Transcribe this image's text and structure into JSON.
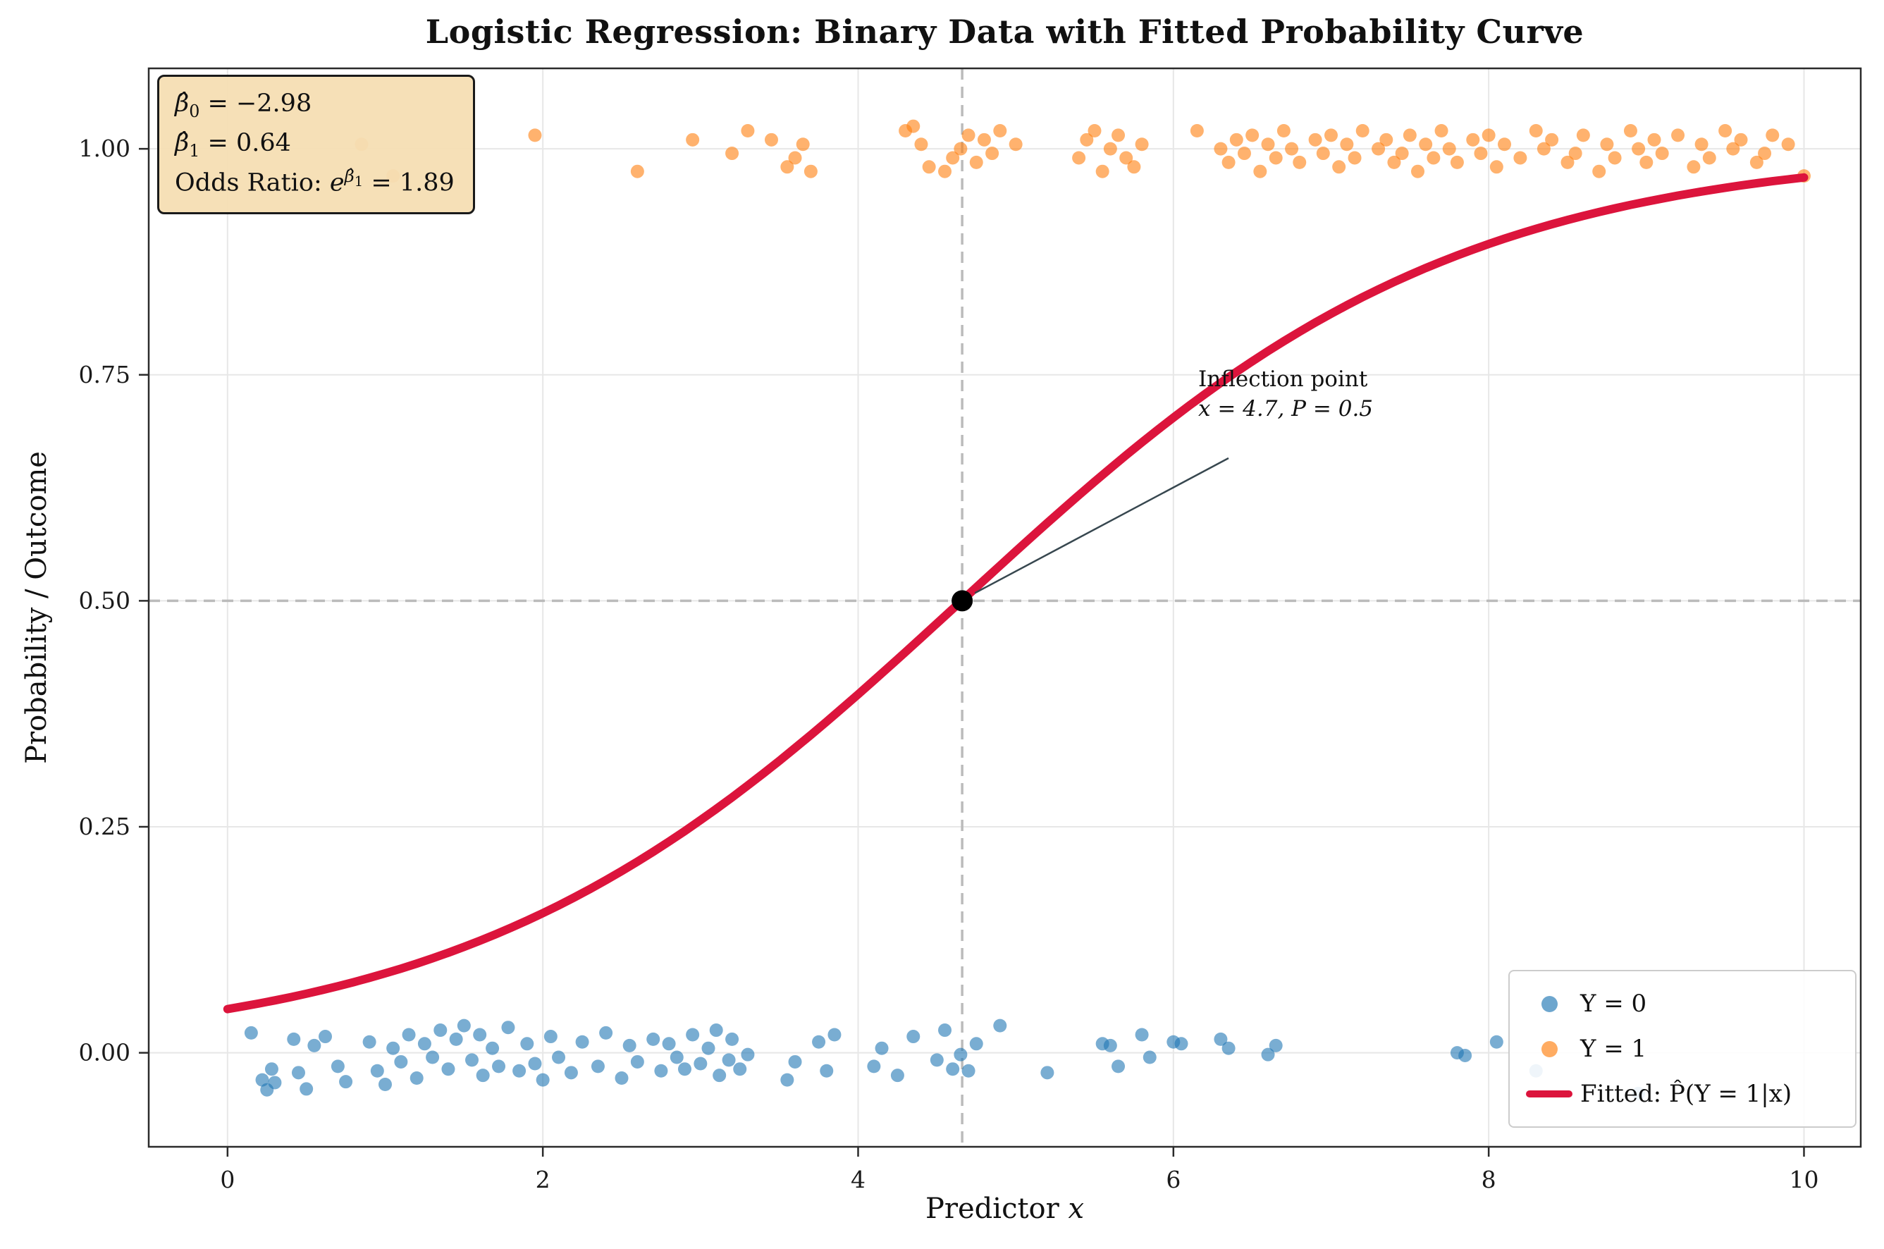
{
  "title": "Logistic Regression: Binary Data with Fitted Probability Curve",
  "labels": {
    "xlabel_text": "Predictor ",
    "xlabel_var": "x",
    "ylabel": "Probability / Outcome"
  },
  "stats_box": {
    "line1": {
      "base": "β̂",
      "sub": "0",
      "value": " = −2.98"
    },
    "line2": {
      "base": "β̂",
      "sub": "1",
      "value": " = 0.64"
    },
    "line3": {
      "prefix": "Odds Ratio: ",
      "base": "e",
      "sup_base": "β̂",
      "sup_sub": "1",
      "value": " = 1.89"
    }
  },
  "annotation": {
    "line1": "Inflection point",
    "line2": "x = 4.7, P = 0.5"
  },
  "legend": {
    "position": "lower right",
    "items": [
      {
        "label": "Y = 0",
        "marker": "dot"
      },
      {
        "label": "Y = 1",
        "marker": "dot"
      },
      {
        "label": "Fitted: P̂(Y = 1|x)",
        "marker": "line"
      }
    ]
  },
  "chart_data": {
    "type": "scatter",
    "title": "Logistic Regression: Binary Data with Fitted Probability Curve",
    "xlabel": "Predictor x",
    "ylabel": "Probability / Outcome",
    "xlim": [
      -0.5,
      10.36
    ],
    "ylim": [
      -0.104,
      1.089
    ],
    "x_ticks": [
      0,
      2,
      4,
      6,
      8,
      10
    ],
    "x_tick_labels": [
      "0",
      "2",
      "4",
      "6",
      "8",
      "10"
    ],
    "y_ticks": [
      0,
      0.25,
      0.5,
      0.75,
      1.0
    ],
    "y_tick_labels": [
      "0.00",
      "0.25",
      "0.50",
      "0.75",
      "1.00"
    ],
    "grid": true,
    "grid_color": "#e7e7e7",
    "series": [
      {
        "name": "Y = 0",
        "color": "#1f77b4",
        "opacity": 0.6,
        "points": [
          [
            0.15,
            0.022
          ],
          [
            0.22,
            -0.03
          ],
          [
            0.25,
            -0.041
          ],
          [
            0.28,
            -0.018
          ],
          [
            0.3,
            -0.033
          ],
          [
            0.42,
            0.015
          ],
          [
            0.45,
            -0.022
          ],
          [
            0.5,
            -0.04
          ],
          [
            0.55,
            0.008
          ],
          [
            0.62,
            0.018
          ],
          [
            0.7,
            -0.015
          ],
          [
            0.75,
            -0.032
          ],
          [
            0.9,
            0.012
          ],
          [
            0.95,
            -0.02
          ],
          [
            1.0,
            -0.035
          ],
          [
            1.05,
            0.005
          ],
          [
            1.1,
            -0.01
          ],
          [
            1.15,
            0.02
          ],
          [
            1.2,
            -0.028
          ],
          [
            1.25,
            0.01
          ],
          [
            1.3,
            -0.005
          ],
          [
            1.35,
            0.025
          ],
          [
            1.4,
            -0.018
          ],
          [
            1.45,
            0.015
          ],
          [
            1.5,
            0.03
          ],
          [
            1.55,
            -0.008
          ],
          [
            1.6,
            0.02
          ],
          [
            1.62,
            -0.025
          ],
          [
            1.68,
            0.005
          ],
          [
            1.72,
            -0.015
          ],
          [
            1.78,
            0.028
          ],
          [
            1.85,
            -0.02
          ],
          [
            1.9,
            0.01
          ],
          [
            1.95,
            -0.012
          ],
          [
            2.0,
            -0.03
          ],
          [
            2.05,
            0.018
          ],
          [
            2.1,
            -0.005
          ],
          [
            2.18,
            -0.022
          ],
          [
            2.25,
            0.012
          ],
          [
            2.35,
            -0.015
          ],
          [
            2.4,
            0.022
          ],
          [
            2.5,
            -0.028
          ],
          [
            2.55,
            0.008
          ],
          [
            2.6,
            -0.01
          ],
          [
            2.7,
            0.015
          ],
          [
            2.75,
            -0.02
          ],
          [
            2.8,
            0.01
          ],
          [
            2.85,
            -0.005
          ],
          [
            2.9,
            -0.018
          ],
          [
            2.95,
            0.02
          ],
          [
            3.0,
            -0.012
          ],
          [
            3.05,
            0.005
          ],
          [
            3.1,
            0.025
          ],
          [
            3.12,
            -0.025
          ],
          [
            3.18,
            -0.008
          ],
          [
            3.2,
            0.015
          ],
          [
            3.25,
            -0.018
          ],
          [
            3.3,
            -0.002
          ],
          [
            3.55,
            -0.03
          ],
          [
            3.6,
            -0.01
          ],
          [
            3.75,
            0.012
          ],
          [
            3.8,
            -0.02
          ],
          [
            3.85,
            0.02
          ],
          [
            4.1,
            -0.015
          ],
          [
            4.15,
            0.005
          ],
          [
            4.25,
            -0.025
          ],
          [
            4.35,
            0.018
          ],
          [
            4.5,
            -0.008
          ],
          [
            4.55,
            0.025
          ],
          [
            4.6,
            -0.018
          ],
          [
            4.65,
            -0.002
          ],
          [
            4.7,
            -0.02
          ],
          [
            4.75,
            0.01
          ],
          [
            4.9,
            0.03
          ],
          [
            5.2,
            -0.022
          ],
          [
            5.55,
            0.01
          ],
          [
            5.6,
            0.008
          ],
          [
            5.65,
            -0.015
          ],
          [
            5.8,
            0.02
          ],
          [
            5.85,
            -0.005
          ],
          [
            6.0,
            0.012
          ],
          [
            6.05,
            0.01
          ],
          [
            6.3,
            0.015
          ],
          [
            6.35,
            0.005
          ],
          [
            6.6,
            -0.002
          ],
          [
            6.65,
            0.008
          ],
          [
            7.8,
            0.0
          ],
          [
            7.85,
            -0.003
          ],
          [
            8.05,
            0.012
          ],
          [
            8.3,
            -0.02
          ],
          [
            8.95,
            -0.045
          ]
        ]
      },
      {
        "name": "Y = 1",
        "color": "#ff7f0e",
        "opacity": 0.6,
        "points": [
          [
            0.85,
            1.005
          ],
          [
            1.05,
            0.97
          ],
          [
            1.95,
            1.015
          ],
          [
            2.6,
            0.975
          ],
          [
            2.95,
            1.01
          ],
          [
            3.2,
            0.995
          ],
          [
            3.3,
            1.02
          ],
          [
            3.45,
            1.01
          ],
          [
            3.55,
            0.98
          ],
          [
            3.6,
            0.99
          ],
          [
            3.65,
            1.005
          ],
          [
            3.7,
            0.975
          ],
          [
            4.3,
            1.02
          ],
          [
            4.35,
            1.025
          ],
          [
            4.4,
            1.005
          ],
          [
            4.45,
            0.98
          ],
          [
            4.55,
            0.975
          ],
          [
            4.6,
            0.99
          ],
          [
            4.65,
            1.0
          ],
          [
            4.7,
            1.015
          ],
          [
            4.75,
            0.985
          ],
          [
            4.8,
            1.01
          ],
          [
            4.85,
            0.995
          ],
          [
            4.9,
            1.02
          ],
          [
            5.0,
            1.005
          ],
          [
            5.4,
            0.99
          ],
          [
            5.45,
            1.01
          ],
          [
            5.5,
            1.02
          ],
          [
            5.55,
            0.975
          ],
          [
            5.6,
            1.0
          ],
          [
            5.65,
            1.015
          ],
          [
            5.7,
            0.99
          ],
          [
            5.75,
            0.98
          ],
          [
            5.8,
            1.005
          ],
          [
            6.15,
            1.02
          ],
          [
            6.3,
            1.0
          ],
          [
            6.35,
            0.985
          ],
          [
            6.4,
            1.01
          ],
          [
            6.45,
            0.995
          ],
          [
            6.5,
            1.015
          ],
          [
            6.55,
            0.975
          ],
          [
            6.6,
            1.005
          ],
          [
            6.65,
            0.99
          ],
          [
            6.7,
            1.02
          ],
          [
            6.75,
            1.0
          ],
          [
            6.8,
            0.985
          ],
          [
            6.9,
            1.01
          ],
          [
            6.95,
            0.995
          ],
          [
            7.0,
            1.015
          ],
          [
            7.05,
            0.98
          ],
          [
            7.1,
            1.005
          ],
          [
            7.15,
            0.99
          ],
          [
            7.2,
            1.02
          ],
          [
            7.3,
            1.0
          ],
          [
            7.35,
            1.01
          ],
          [
            7.4,
            0.985
          ],
          [
            7.45,
            0.995
          ],
          [
            7.5,
            1.015
          ],
          [
            7.55,
            0.975
          ],
          [
            7.6,
            1.005
          ],
          [
            7.65,
            0.99
          ],
          [
            7.7,
            1.02
          ],
          [
            7.75,
            1.0
          ],
          [
            7.8,
            0.985
          ],
          [
            7.9,
            1.01
          ],
          [
            7.95,
            0.995
          ],
          [
            8.0,
            1.015
          ],
          [
            8.05,
            0.98
          ],
          [
            8.1,
            1.005
          ],
          [
            8.2,
            0.99
          ],
          [
            8.3,
            1.02
          ],
          [
            8.35,
            1.0
          ],
          [
            8.4,
            1.01
          ],
          [
            8.5,
            0.985
          ],
          [
            8.55,
            0.995
          ],
          [
            8.6,
            1.015
          ],
          [
            8.7,
            0.975
          ],
          [
            8.75,
            1.005
          ],
          [
            8.8,
            0.99
          ],
          [
            8.9,
            1.02
          ],
          [
            8.95,
            1.0
          ],
          [
            9.0,
            0.985
          ],
          [
            9.05,
            1.01
          ],
          [
            9.1,
            0.995
          ],
          [
            9.2,
            1.015
          ],
          [
            9.3,
            0.98
          ],
          [
            9.35,
            1.005
          ],
          [
            9.4,
            0.99
          ],
          [
            9.5,
            1.02
          ],
          [
            9.55,
            1.0
          ],
          [
            9.6,
            1.01
          ],
          [
            9.7,
            0.985
          ],
          [
            9.75,
            0.995
          ],
          [
            9.8,
            1.015
          ],
          [
            9.9,
            1.005
          ],
          [
            10.0,
            0.97
          ]
        ]
      }
    ],
    "fit": {
      "label": "Fitted: P̂(Y = 1|x)",
      "color": "#dc143c",
      "beta0": -2.98,
      "beta1": 0.64,
      "odds_ratio": 1.89,
      "x_range": [
        0,
        10
      ]
    },
    "inflection_point": {
      "x": 4.66,
      "y": 0.5,
      "label_x": 4.7,
      "label_p": 0.5
    },
    "reference_lines": {
      "vertical_x": 4.66,
      "horizontal_y": 0.5,
      "style": "dashed",
      "color": "#bbbbbb"
    }
  }
}
